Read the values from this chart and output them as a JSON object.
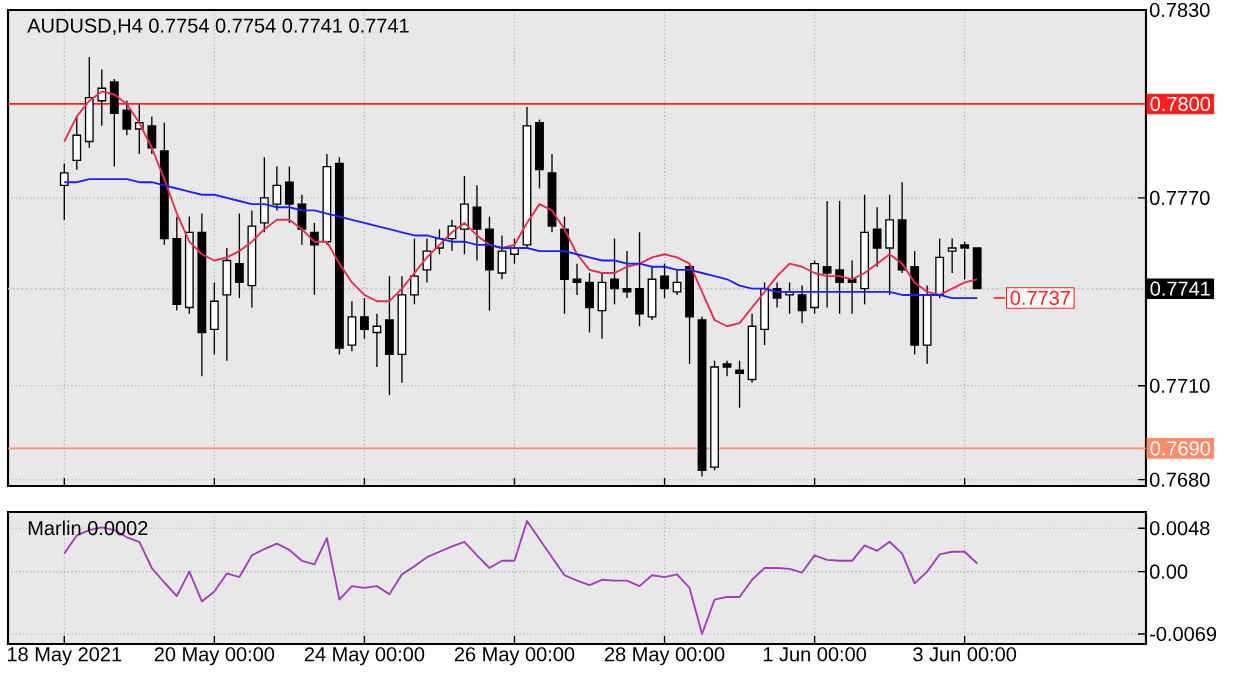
{
  "chart_data": [
    {
      "type": "candlestick",
      "title": "AUDUSD,H4 0.7754 0.7754 0.7741 0.7741",
      "categories": [
        null,
        null,
        null,
        null,
        null,
        null,
        null,
        null,
        null,
        null,
        null,
        null,
        null,
        null,
        null,
        null,
        null,
        null,
        null,
        null,
        null,
        null,
        null,
        null,
        null,
        null,
        null,
        null,
        null,
        null,
        null,
        null,
        null,
        null,
        null,
        null,
        null,
        null,
        null,
        null,
        null,
        null,
        null,
        null,
        null,
        null,
        null,
        null,
        null,
        null,
        null,
        null,
        null,
        null,
        null,
        null,
        null,
        null,
        null,
        null,
        null,
        null,
        null,
        null,
        null,
        null,
        null,
        null,
        null,
        null,
        null,
        null,
        null,
        null
      ],
      "ohlc": [
        [
          0.7774,
          0.7781,
          0.7763,
          0.7778
        ],
        [
          0.7782,
          0.7796,
          0.7779,
          0.779
        ],
        [
          0.7788,
          0.7815,
          0.7786,
          0.7802
        ],
        [
          0.7801,
          0.7811,
          0.7793,
          0.7805
        ],
        [
          0.7807,
          0.7808,
          0.778,
          0.7797
        ],
        [
          0.7798,
          0.7801,
          0.779,
          0.7792
        ],
        [
          0.7792,
          0.78,
          0.7784,
          0.7794
        ],
        [
          0.7793,
          0.7796,
          0.7784,
          0.7786
        ],
        [
          0.7785,
          0.7794,
          0.7755,
          0.7757
        ],
        [
          0.7757,
          0.7764,
          0.7734,
          0.7736
        ],
        [
          0.7735,
          0.7764,
          0.7733,
          0.7759
        ],
        [
          0.7759,
          0.7765,
          0.7713,
          0.7727
        ],
        [
          0.7728,
          0.7743,
          0.772,
          0.7737
        ],
        [
          0.7739,
          0.7754,
          0.7718,
          0.775
        ],
        [
          0.7749,
          0.7765,
          0.7738,
          0.7743
        ],
        [
          0.7742,
          0.7766,
          0.7735,
          0.7761
        ],
        [
          0.7762,
          0.7783,
          0.7759,
          0.777
        ],
        [
          0.7768,
          0.778,
          0.7766,
          0.7774
        ],
        [
          0.7775,
          0.778,
          0.7762,
          0.7768
        ],
        [
          0.7768,
          0.7771,
          0.7755,
          0.776
        ],
        [
          0.7759,
          0.7762,
          0.7739,
          0.7755
        ],
        [
          0.7756,
          0.7784,
          0.7755,
          0.778
        ],
        [
          0.7781,
          0.7783,
          0.772,
          0.7722
        ],
        [
          0.7723,
          0.7737,
          0.7721,
          0.7732
        ],
        [
          0.7732,
          0.7738,
          0.7725,
          0.7728
        ],
        [
          0.7727,
          0.7733,
          0.7716,
          0.7729
        ],
        [
          0.7731,
          0.7745,
          0.7707,
          0.772
        ],
        [
          0.772,
          0.7745,
          0.7711,
          0.7739
        ],
        [
          0.7739,
          0.7757,
          0.7736,
          0.7745
        ],
        [
          0.7747,
          0.7757,
          0.7743,
          0.7753
        ],
        [
          0.7754,
          0.776,
          0.7752,
          0.7757
        ],
        [
          0.7757,
          0.7763,
          0.7753,
          0.7761
        ],
        [
          0.776,
          0.7777,
          0.7752,
          0.7768
        ],
        [
          0.7767,
          0.7774,
          0.775,
          0.776
        ],
        [
          0.776,
          0.7764,
          0.7734,
          0.7747
        ],
        [
          0.7746,
          0.7758,
          0.7744,
          0.7753
        ],
        [
          0.7752,
          0.7757,
          0.7749,
          0.7754
        ],
        [
          0.7755,
          0.7799,
          0.7754,
          0.7793
        ],
        [
          0.7794,
          0.7795,
          0.7773,
          0.7779
        ],
        [
          0.7778,
          0.7784,
          0.7759,
          0.7761
        ],
        [
          0.776,
          0.7764,
          0.7733,
          0.7744
        ],
        [
          0.7744,
          0.7749,
          0.7739,
          0.7743
        ],
        [
          0.7743,
          0.7746,
          0.7727,
          0.7735
        ],
        [
          0.7734,
          0.7746,
          0.7725,
          0.7743
        ],
        [
          0.7744,
          0.7757,
          0.7736,
          0.7741
        ],
        [
          0.7741,
          0.7753,
          0.7738,
          0.774
        ],
        [
          0.7741,
          0.7759,
          0.7729,
          0.7733
        ],
        [
          0.7732,
          0.7748,
          0.7731,
          0.7744
        ],
        [
          0.7745,
          0.7749,
          0.7738,
          0.7741
        ],
        [
          0.774,
          0.7747,
          0.7739,
          0.7743
        ],
        [
          0.7748,
          0.7749,
          0.7717,
          0.7732
        ],
        [
          0.7731,
          0.7732,
          0.7681,
          0.7683
        ],
        [
          0.7684,
          0.7718,
          0.7683,
          0.7716
        ],
        [
          0.7717,
          0.7718,
          0.7713,
          0.7716
        ],
        [
          0.7715,
          0.7718,
          0.7703,
          0.7714
        ],
        [
          0.7712,
          0.7733,
          0.7711,
          0.7729
        ],
        [
          0.7728,
          0.7743,
          0.7723,
          0.7741
        ],
        [
          0.7741,
          0.7743,
          0.7735,
          0.7738
        ],
        [
          0.7739,
          0.7743,
          0.7733,
          0.774
        ],
        [
          0.7739,
          0.7742,
          0.773,
          0.7734
        ],
        [
          0.7735,
          0.775,
          0.7733,
          0.7749
        ],
        [
          0.7748,
          0.7769,
          0.7735,
          0.7746
        ],
        [
          0.7747,
          0.7769,
          0.7733,
          0.7743
        ],
        [
          0.7744,
          0.775,
          0.7733,
          0.7743
        ],
        [
          0.7741,
          0.7771,
          0.7736,
          0.7759
        ],
        [
          0.776,
          0.7767,
          0.7748,
          0.7754
        ],
        [
          0.7754,
          0.7771,
          0.7739,
          0.7763
        ],
        [
          0.7763,
          0.7775,
          0.7746,
          0.7747
        ],
        [
          0.7748,
          0.7753,
          0.772,
          0.7723
        ],
        [
          0.7723,
          0.7742,
          0.7717,
          0.7739
        ],
        [
          0.7739,
          0.7757,
          0.7738,
          0.7751
        ],
        [
          0.7753,
          0.7757,
          0.7746,
          0.7754
        ],
        [
          0.7755,
          0.7756,
          0.7744,
          0.7754
        ],
        [
          0.7754,
          0.7754,
          0.7741,
          0.7741
        ]
      ],
      "series": [
        {
          "type": "line",
          "color": "#e0304f",
          "values": [
            0.7788,
            0.7796,
            0.7801,
            0.7804,
            0.7803,
            0.78,
            0.7794,
            0.7786,
            0.7776,
            0.7765,
            0.7756,
            0.7752,
            0.775,
            0.7751,
            0.7753,
            0.7756,
            0.776,
            0.7763,
            0.7763,
            0.776,
            0.7756,
            0.7756,
            0.7749,
            0.7743,
            0.7739,
            0.7737,
            0.7737,
            0.7741,
            0.7746,
            0.7751,
            0.7755,
            0.7759,
            0.7762,
            0.7758,
            0.7755,
            0.7754,
            0.7755,
            0.7762,
            0.7768,
            0.7766,
            0.776,
            0.7752,
            0.7747,
            0.7746,
            0.7746,
            0.7748,
            0.7749,
            0.7751,
            0.7752,
            0.7751,
            0.7749,
            0.774,
            0.7731,
            0.7729,
            0.773,
            0.7735,
            0.774,
            0.7745,
            0.7749,
            0.7748,
            0.7746,
            0.7745,
            0.7745,
            0.7744,
            0.7746,
            0.7749,
            0.7752,
            0.7749,
            0.7743,
            0.774,
            0.7739,
            0.7741,
            0.7743,
            0.7744
          ]
        },
        {
          "type": "line",
          "color": "#2020ff",
          "values": [
            0.7775,
            0.7775,
            0.7776,
            0.7776,
            0.7776,
            0.7776,
            0.7775,
            0.7775,
            0.7774,
            0.7773,
            0.7772,
            0.7771,
            0.7771,
            0.777,
            0.7769,
            0.7768,
            0.7768,
            0.7767,
            0.7767,
            0.7766,
            0.7766,
            0.7765,
            0.7764,
            0.7763,
            0.7762,
            0.7761,
            0.776,
            0.7759,
            0.7758,
            0.7758,
            0.7757,
            0.7756,
            0.7756,
            0.7755,
            0.7755,
            0.7754,
            0.7754,
            0.7754,
            0.7753,
            0.7753,
            0.7753,
            0.7752,
            0.7751,
            0.775,
            0.775,
            0.7749,
            0.7749,
            0.7748,
            0.7748,
            0.7747,
            0.7747,
            0.7746,
            0.7745,
            0.7744,
            0.7742,
            0.7741,
            0.7741,
            0.774,
            0.774,
            0.774,
            0.774,
            0.774,
            0.774,
            0.774,
            0.774,
            0.774,
            0.774,
            0.7739,
            0.7739,
            0.7739,
            0.7739,
            0.7738,
            0.7738,
            0.7738
          ]
        }
      ],
      "ylim": [
        0.7678,
        0.783
      ],
      "yticks": [
        {
          "value": 0.783,
          "label": "0.7830"
        },
        {
          "value": 0.777,
          "label": "0.7770"
        },
        {
          "value": 0.771,
          "label": "0.7710"
        },
        {
          "value": 0.768,
          "label": "0.7680"
        }
      ],
      "ref_lines": [
        {
          "axis": "y",
          "value": 0.78,
          "label": "0.7800",
          "color": "#ff2020"
        },
        {
          "axis": "y",
          "value": 0.769,
          "label": "0.7690",
          "color": "#ff8c6a"
        },
        {
          "axis": "y",
          "value": 0.7741,
          "label": "0.7741",
          "color": "#c0c0c0",
          "line_style": "dotted"
        }
      ],
      "annotations": [
        "0.7737"
      ],
      "grid": true
    },
    {
      "type": "line",
      "title": "Marlin 0.0002",
      "color": "#a040b8",
      "categories": [
        "18 May 2021",
        null,
        null,
        null,
        null,
        null,
        null,
        null,
        null,
        null,
        null,
        null,
        "20 May 00:00",
        null,
        null,
        null,
        null,
        null,
        null,
        null,
        null,
        null,
        null,
        null,
        "24 May 00:00",
        null,
        null,
        null,
        null,
        null,
        null,
        null,
        null,
        null,
        null,
        null,
        "26 May 00:00",
        null,
        null,
        null,
        null,
        null,
        null,
        null,
        null,
        null,
        null,
        null,
        "28 May 00:00",
        null,
        null,
        null,
        null,
        null,
        null,
        null,
        null,
        null,
        null,
        null,
        "1 Jun 00:00",
        null,
        null,
        null,
        null,
        null,
        null,
        null,
        null,
        null,
        null,
        null,
        "3 Jun 00:00",
        null
      ],
      "values": [
        0.002,
        0.004,
        0.0046,
        0.0049,
        0.0046,
        0.0038,
        0.0033,
        0.0004,
        -0.0012,
        -0.0027,
        0.0,
        -0.0033,
        -0.0022,
        -0.0002,
        -0.0006,
        0.0018,
        0.0025,
        0.0031,
        0.0024,
        0.0012,
        0.0008,
        0.0037,
        -0.0031,
        -0.0016,
        -0.0018,
        -0.0016,
        -0.0025,
        -0.0003,
        0.0006,
        0.0016,
        0.0022,
        0.0028,
        0.0033,
        0.0018,
        0.0004,
        0.0012,
        0.0012,
        0.0056,
        0.0036,
        0.0016,
        -0.0004,
        -0.001,
        -0.0015,
        -0.0009,
        -0.001,
        -0.001,
        -0.0016,
        -0.0004,
        -0.0006,
        -0.0003,
        -0.0018,
        -0.0069,
        -0.0031,
        -0.0028,
        -0.0028,
        -0.0009,
        0.0004,
        0.0004,
        0.0003,
        -0.0001,
        0.0018,
        0.0013,
        0.0012,
        0.0012,
        0.0029,
        0.0023,
        0.0033,
        0.002,
        -0.0013,
        0.0,
        0.0019,
        0.0022,
        0.0022,
        0.0009
      ],
      "ylim": [
        -0.008,
        0.0066
      ],
      "yticks": [
        {
          "value": 0.0048,
          "label": "0.0048"
        },
        {
          "value": 0,
          "label": "0.00"
        },
        {
          "value": -0.0069,
          "label": "-0.0069"
        }
      ],
      "grid": true
    }
  ]
}
